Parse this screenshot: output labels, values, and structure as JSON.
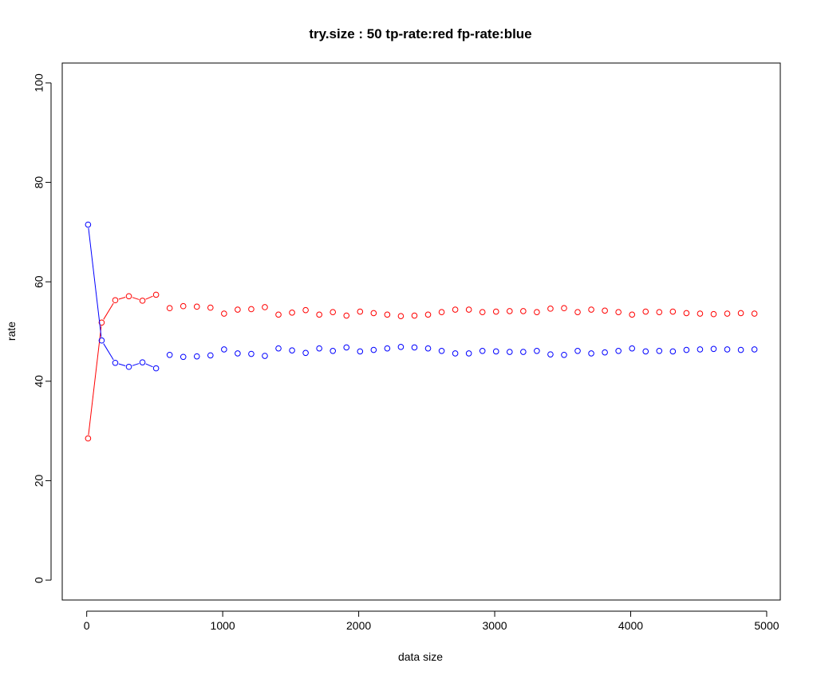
{
  "chart_data": {
    "type": "scatter",
    "title": "try.size :  50  tp-rate:red fp-rate:blue",
    "xlabel": "data size",
    "ylabel": "rate",
    "xlim": [
      -180,
      5100
    ],
    "ylim": [
      -4,
      104
    ],
    "xticks": [
      0,
      1000,
      2000,
      3000,
      4000,
      5000
    ],
    "yticks": [
      0,
      20,
      40,
      60,
      80,
      100
    ],
    "xtick_labels": [
      "0",
      "1000",
      "2000",
      "3000",
      "4000",
      "5000"
    ],
    "ytick_labels": [
      "0",
      "20",
      "40",
      "60",
      "80",
      "100"
    ],
    "grid": false,
    "x": [
      10,
      110,
      210,
      310,
      410,
      510,
      610,
      710,
      810,
      910,
      1010,
      1110,
      1210,
      1310,
      1410,
      1510,
      1610,
      1710,
      1810,
      1910,
      2010,
      2110,
      2210,
      2310,
      2410,
      2510,
      2610,
      2710,
      2810,
      2910,
      3010,
      3110,
      3210,
      3310,
      3410,
      3510,
      3610,
      3710,
      3810,
      3910,
      4010,
      4110,
      4210,
      4310,
      4410,
      4510,
      4610,
      4710,
      4810,
      4910
    ],
    "series": [
      {
        "color": "#ff0000",
        "values": [
          28.5,
          51.8,
          56.3,
          57.1,
          56.2,
          57.4,
          54.7,
          55.1,
          55.0,
          54.8,
          53.6,
          54.4,
          54.5,
          54.9,
          53.4,
          53.8,
          54.3,
          53.4,
          53.9,
          53.2,
          54.0,
          53.7,
          53.4,
          53.1,
          53.2,
          53.4,
          53.9,
          54.4,
          54.4,
          53.9,
          54.0,
          54.1,
          54.1,
          53.9,
          54.6,
          54.7,
          53.9,
          54.4,
          54.2,
          53.9,
          53.4,
          54.0,
          53.9,
          54.0,
          53.7,
          53.6,
          53.5,
          53.6,
          53.7,
          53.6
        ],
        "connect_first": 6
      },
      {
        "color": "#0000ff",
        "values": [
          71.5,
          48.2,
          43.7,
          42.9,
          43.8,
          42.6,
          45.3,
          44.9,
          45.0,
          45.2,
          46.4,
          45.6,
          45.5,
          45.1,
          46.6,
          46.2,
          45.7,
          46.6,
          46.1,
          46.8,
          46.0,
          46.3,
          46.6,
          46.9,
          46.8,
          46.6,
          46.1,
          45.6,
          45.6,
          46.1,
          46.0,
          45.9,
          45.9,
          46.1,
          45.4,
          45.3,
          46.1,
          45.6,
          45.8,
          46.1,
          46.6,
          46.0,
          46.1,
          46.0,
          46.3,
          46.4,
          46.5,
          46.4,
          46.3,
          46.4
        ],
        "connect_first": 6
      }
    ]
  }
}
